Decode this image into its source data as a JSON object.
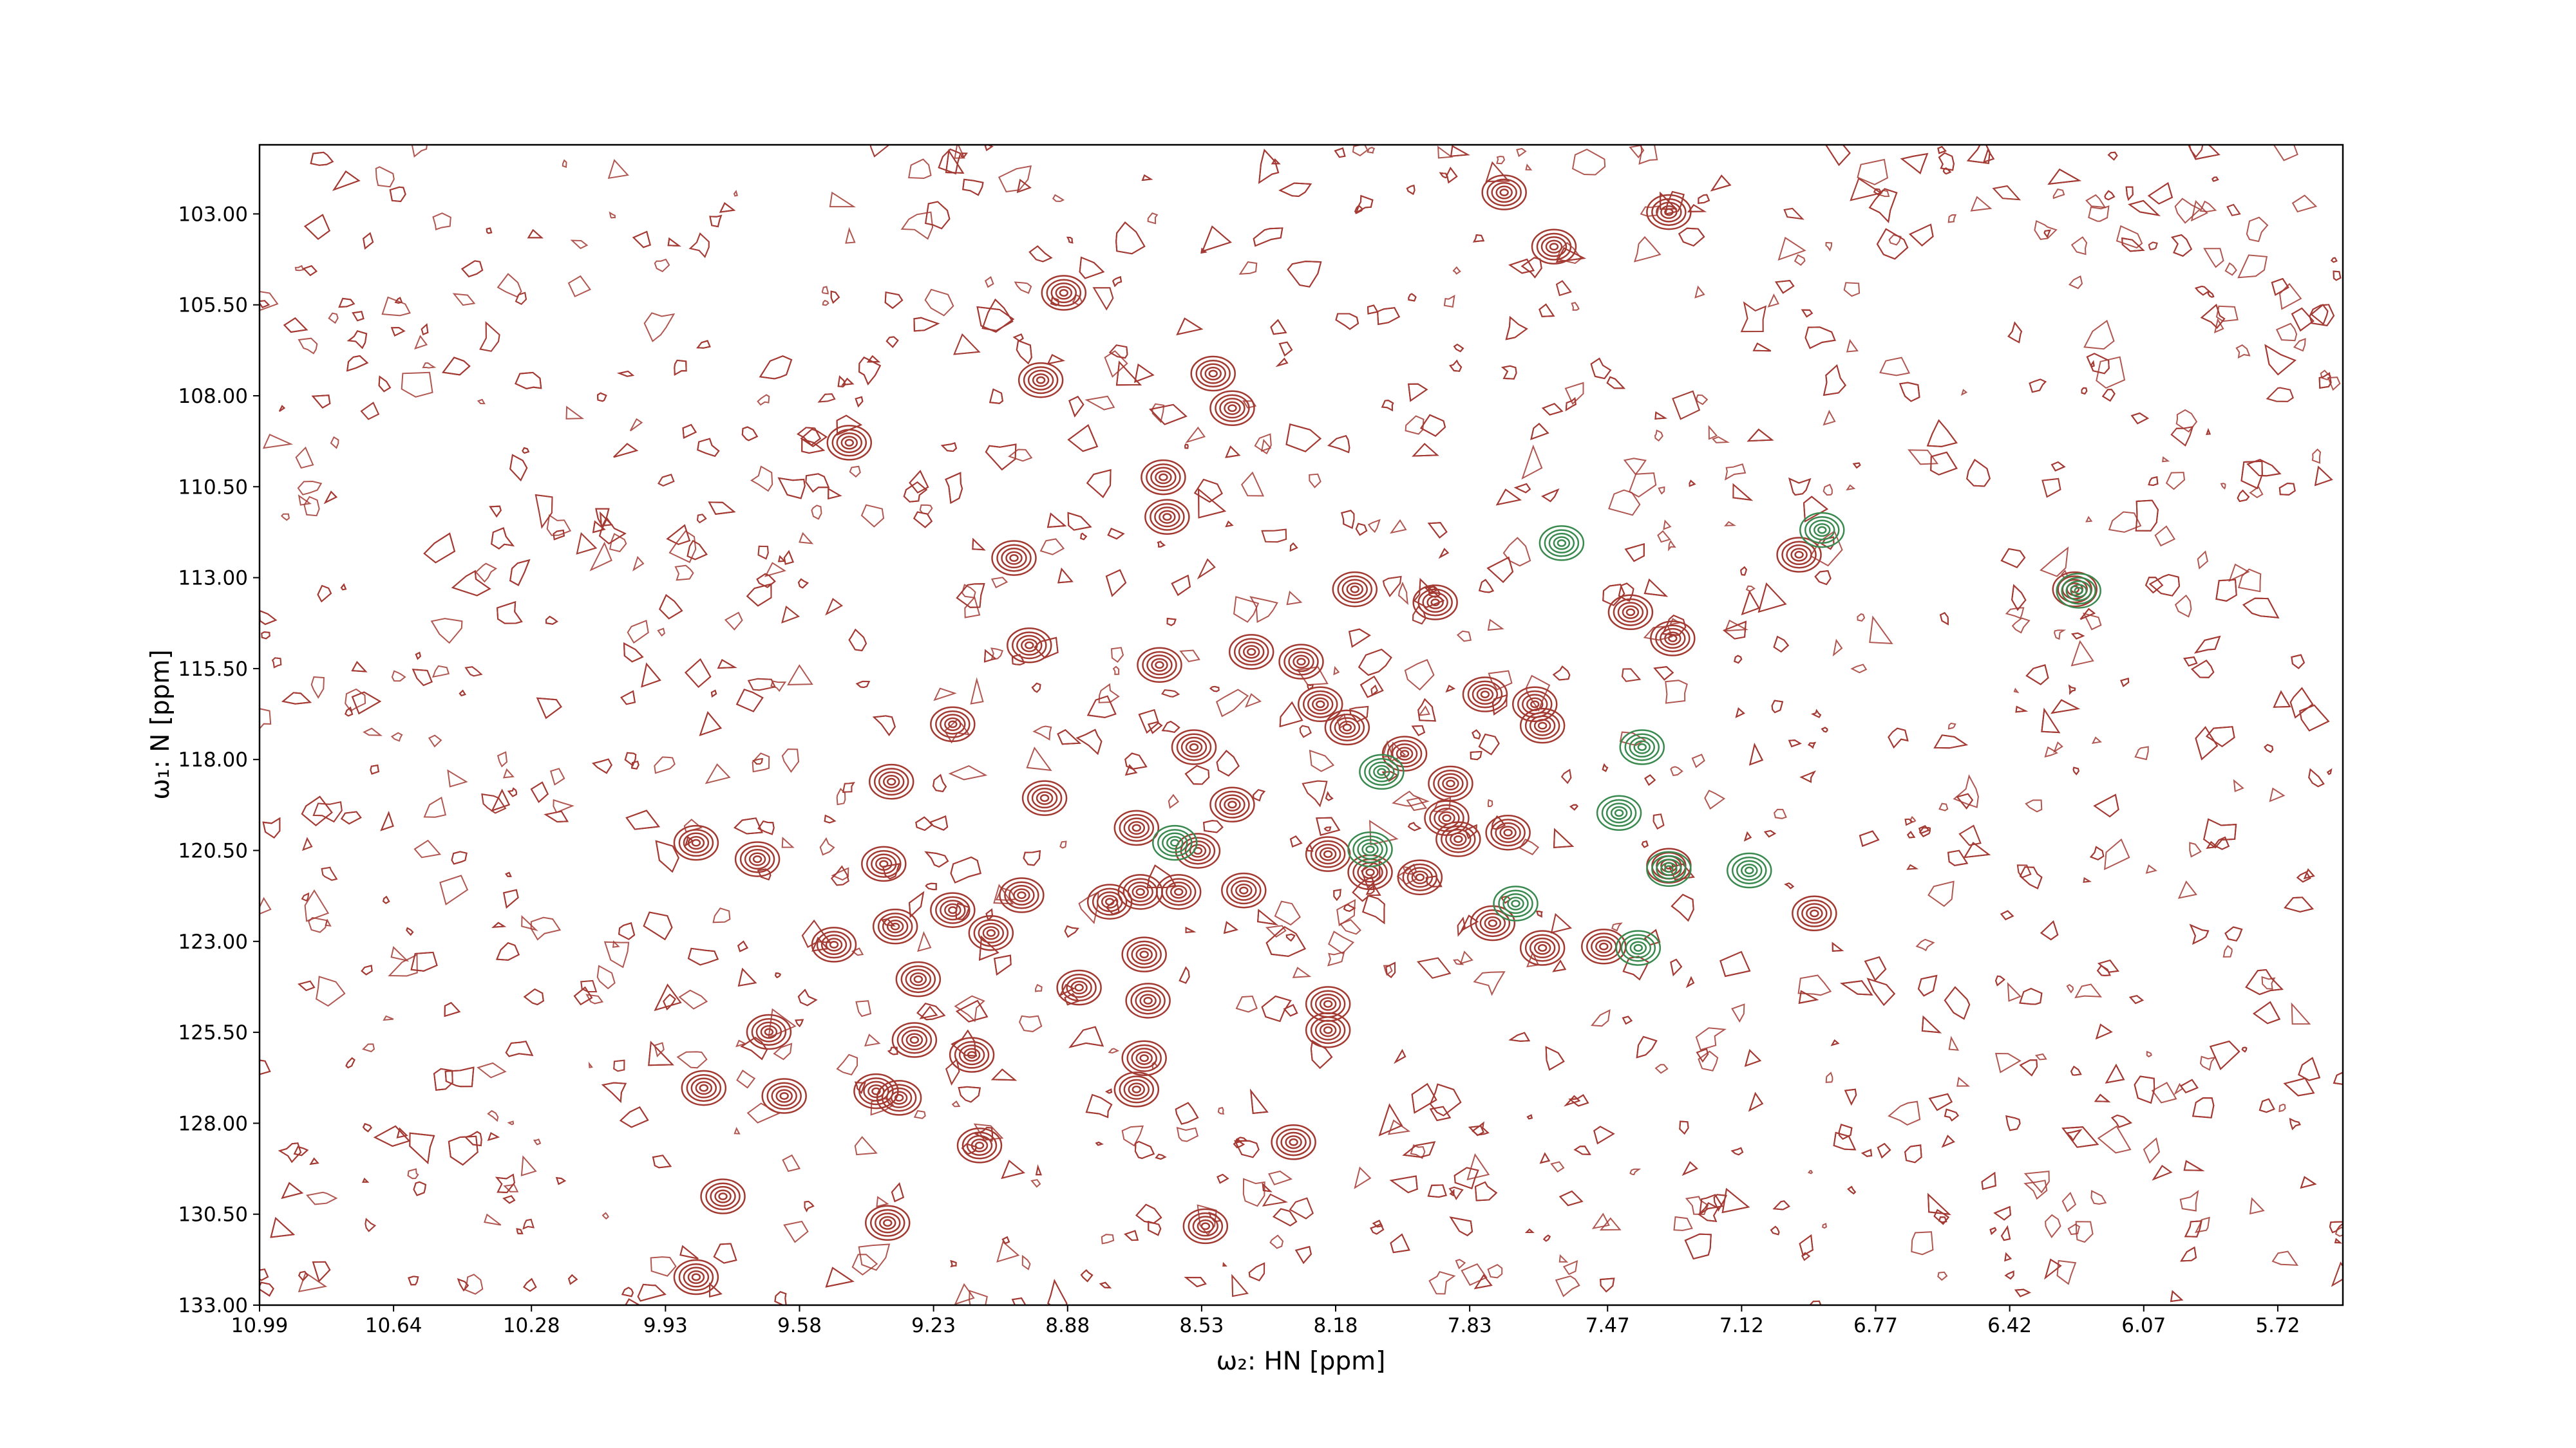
{
  "chart_data": {
    "type": "contour",
    "xlabel": "ω₂: HN [ppm]",
    "ylabel": "ω₁: N [ppm]",
    "xlim": [
      10.99,
      5.55
    ],
    "ylim": [
      133,
      101.1
    ],
    "xticks": [
      10.99,
      10.64,
      10.28,
      9.93,
      9.58,
      9.23,
      8.88,
      8.53,
      8.18,
      7.83,
      7.47,
      7.12,
      6.77,
      6.42,
      6.07,
      5.72
    ],
    "yticks": [
      {
        "value": 103,
        "label": "103.00"
      },
      {
        "value": 105.5,
        "label": "105.50"
      },
      {
        "value": 108,
        "label": "108.00"
      },
      {
        "value": 110.5,
        "label": "110.50"
      },
      {
        "value": 113,
        "label": "113.00"
      },
      {
        "value": 115.5,
        "label": "115.50"
      },
      {
        "value": 118,
        "label": "118.00"
      },
      {
        "value": 120.5,
        "label": "120.50"
      },
      {
        "value": 123,
        "label": "123.00"
      },
      {
        "value": 125.5,
        "label": "125.50"
      },
      {
        "value": 128,
        "label": "128.00"
      },
      {
        "value": 130.5,
        "label": "130.50"
      },
      {
        "value": 133,
        "label": "133.00"
      }
    ],
    "series": [
      {
        "color": "#a33a32",
        "x": [
          7.74,
          7.31,
          7.61,
          8.89,
          8.95,
          8.5,
          8.45,
          9.45,
          8.63,
          8.62,
          9.02,
          6.97,
          8.13,
          7.92,
          7.41,
          7.3,
          8.98,
          8.4,
          8.64,
          8.27,
          7.79,
          7.66,
          7.64,
          8.22,
          8.15,
          9.18,
          8.55,
          8.0,
          9.34,
          8.94,
          8.45,
          7.88,
          8.7,
          7.89,
          7.86,
          7.73,
          9.85,
          9.69,
          9.36,
          8.54,
          8.2,
          8.09,
          7.96,
          9.0,
          8.42,
          8.59,
          8.69,
          8.77,
          9.18,
          9.33,
          9.08,
          9.49,
          8.68,
          7.77,
          7.64,
          7.48,
          6.93,
          7.31,
          9.27,
          8.85,
          8.67,
          8.2,
          8.2,
          9.66,
          9.28,
          9.13,
          8.68,
          9.83,
          9.62,
          9.38,
          9.32,
          8.7,
          9.11,
          8.29,
          9.78,
          9.35,
          8.52,
          9.85,
          6.25
        ],
        "y": [
          102.41,
          102.95,
          103.9,
          105.17,
          107.57,
          107.39,
          108.34,
          109.29,
          110.24,
          111.33,
          112.46,
          112.37,
          113.32,
          113.68,
          113.95,
          114.67,
          114.86,
          115.04,
          115.4,
          115.31,
          116.21,
          116.48,
          117.07,
          116.48,
          117.12,
          117.03,
          117.66,
          117.84,
          118.61,
          119.06,
          119.24,
          118.66,
          119.88,
          119.61,
          120.19,
          120.01,
          120.29,
          120.74,
          120.87,
          120.51,
          120.6,
          121.1,
          121.24,
          121.73,
          121.6,
          121.64,
          121.64,
          121.91,
          122.14,
          122.59,
          122.77,
          123.09,
          123.36,
          122.5,
          123.18,
          123.14,
          122.23,
          120.92,
          124.04,
          124.27,
          124.63,
          124.72,
          125.44,
          125.49,
          125.71,
          126.12,
          126.21,
          127.03,
          127.25,
          127.12,
          127.3,
          127.07,
          128.61,
          128.52,
          130.01,
          130.74,
          130.83,
          132.23,
          113.32
        ]
      },
      {
        "color": "#3a8a50",
        "x": [
          7.59,
          6.91,
          6.24,
          7.38,
          8.06,
          7.44,
          8.6,
          8.09,
          7.1,
          7.71,
          7.39,
          7.31
        ],
        "y": [
          112.05,
          111.69,
          113.36,
          117.66,
          118.34,
          119.47,
          120.29,
          120.47,
          121.05,
          121.96,
          123.18,
          121.01
        ]
      }
    ]
  }
}
